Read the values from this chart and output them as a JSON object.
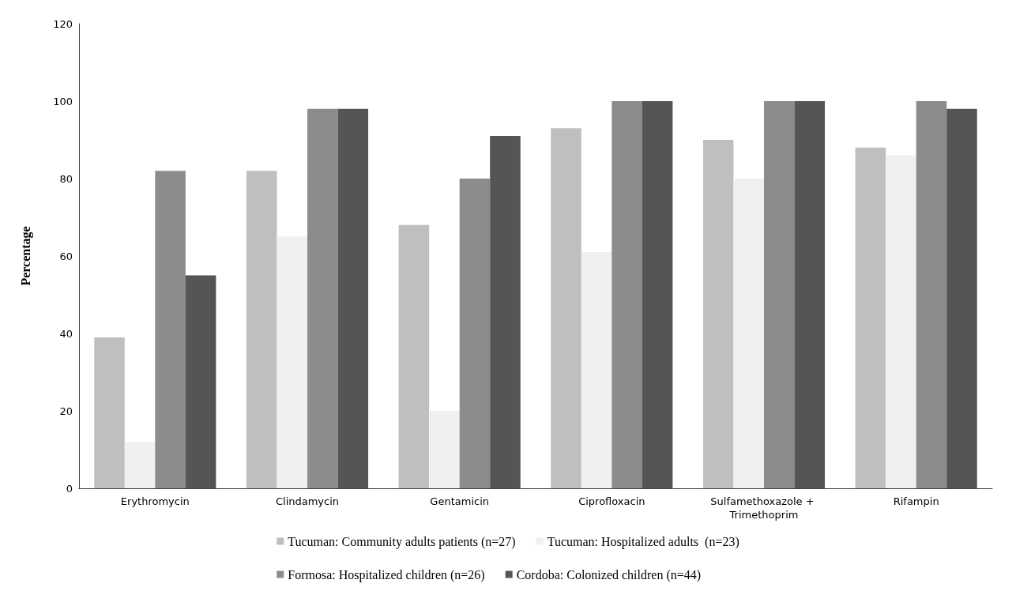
{
  "chart_data": {
    "type": "bar",
    "ylabel": "Percentage",
    "categories": [
      "Erythromycin",
      "Clindamycin",
      "Gentamicin",
      "Ciprofloxacin",
      "Sulfamethoxazole + Trimethoprim",
      "Rifampin"
    ],
    "series": [
      {
        "name": "Tucuman: Community adults patients (n=27)",
        "color": "#bfbfbf",
        "values": [
          39,
          82,
          68,
          93,
          90,
          88
        ]
      },
      {
        "name": "Tucuman: Hospitalized adults  (n=23)",
        "color": "#f0f0f0",
        "values": [
          12,
          65,
          20,
          61,
          80,
          86
        ]
      },
      {
        "name": "Formosa: Hospitalized children (n=26)",
        "color": "#8c8c8c",
        "values": [
          82,
          98,
          80,
          100,
          100,
          100
        ]
      },
      {
        "name": "Cordoba: Colonized children (n=44)",
        "color": "#555555",
        "values": [
          55,
          98,
          91,
          100,
          100,
          98
        ]
      }
    ],
    "ylim": [
      0,
      120
    ],
    "yticks": [
      0,
      20,
      40,
      60,
      80,
      100,
      120
    ],
    "grid": false,
    "legend": "bottom"
  }
}
